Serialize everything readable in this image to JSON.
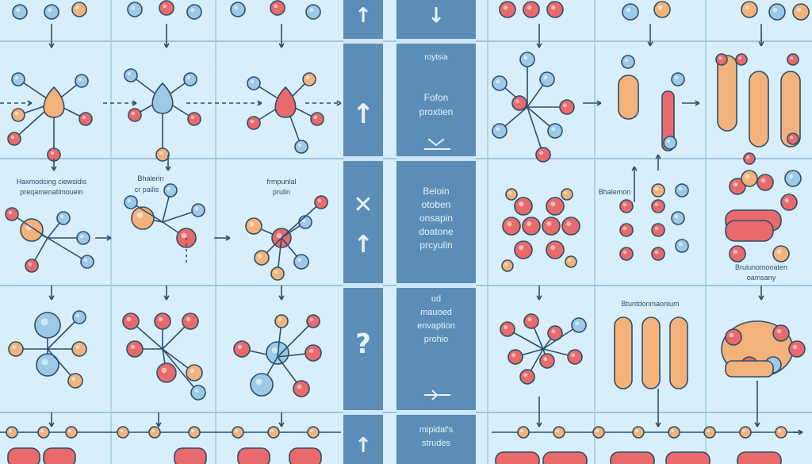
{
  "palette": {
    "background": "#d8eefa",
    "panel_line": "#9cc7e3",
    "bar": "#5b8db7",
    "bar_light": "#e6f2fb",
    "node_red": "#e86a6a",
    "node_orange": "#f2b27a",
    "node_blue": "#9cc9e6",
    "node_dark": "#2d4e6b"
  },
  "labels": {
    "left_row2_a": "Haxmodcing ciewsidis",
    "left_row2_b": "preqamenatimouein",
    "mid_row2_a": "Bhalerin",
    "mid_row2_b": "cr pailis",
    "right_row2_a": "frmpunlal",
    "right_row2_b": "prulin",
    "bar_top": "roytsia",
    "bar_item1_a": "Fofon",
    "bar_item1_b": "proxtien",
    "bar_item2_a": "Beloin",
    "bar_item2_b": "otoben",
    "bar_item2_c": "onsapin",
    "bar_item2_d": "doatone",
    "bar_item2_e": "prcyulin",
    "bar_item3_a": "ud",
    "bar_item3_b": "mauoed",
    "bar_item3_c": "envaption",
    "bar_item3_d": "prohio",
    "bar_item4_a": "mipidal's",
    "bar_item4_b": "strudes",
    "right2_row2_label": "Bhalemon",
    "right3_row2_a": "Bruiunomooaten",
    "right3_row2_b": "oamsany",
    "right2_row3_label": "Btuntdonmaonium"
  },
  "bar_symbols": {
    "up_arrow": "↑",
    "down_arrow": "↓",
    "cross": "✕",
    "question": "?"
  }
}
